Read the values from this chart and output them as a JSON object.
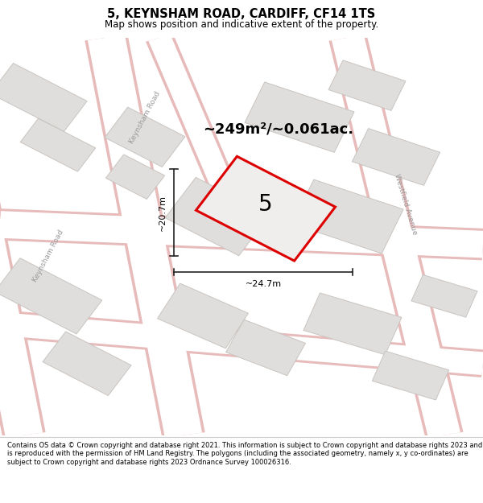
{
  "title": "5, KEYNSHAM ROAD, CARDIFF, CF14 1TS",
  "subtitle": "Map shows position and indicative extent of the property.",
  "area_text": "~249m²/~0.061ac.",
  "property_number": "5",
  "width_label": "~24.7m",
  "height_label": "~20.7m",
  "footer": "Contains OS data © Crown copyright and database right 2021. This information is subject to Crown copyright and database rights 2023 and is reproduced with the permission of HM Land Registry. The polygons (including the associated geometry, namely x, y co-ordinates) are subject to Crown copyright and database rights 2023 Ordnance Survey 100026316.",
  "map_bg": "#f7f6f4",
  "road_fill": "#ffffff",
  "road_edge": "#e8bbbb",
  "building_fill": "#e0dedd",
  "building_outline": "#c8c4c0",
  "property_fill": "#f0eeec",
  "property_outline": "#dd0000",
  "footer_bg": "#ffffff",
  "title_bg": "#ffffff",
  "label_color": "#999999",
  "arrow_color": "#222222"
}
